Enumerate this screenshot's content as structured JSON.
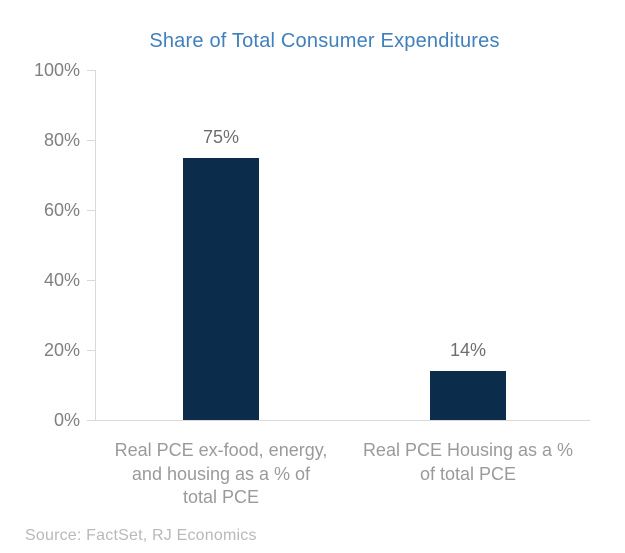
{
  "title": "Share of Total Consumer Expenditures",
  "source": {
    "text": "Source: FactSet, RJ Economics"
  },
  "colors": {
    "title": "#4080bd",
    "bar": "#0b2c4a",
    "axis_line": "#d9d9d9",
    "tick_label": "#808080",
    "value_label": "#6e6e6e",
    "category_label": "#9a9a9a",
    "source_text": "#b9b9b9",
    "background": "#ffffff"
  },
  "chart_data": {
    "type": "bar",
    "title": "Share of Total Consumer Expenditures",
    "categories": [
      "Real PCE ex-food, energy, and housing as a % of total PCE",
      "Real PCE Housing as a % of total PCE"
    ],
    "category_lines": [
      [
        "Real PCE ex-food, energy,",
        "and housing as a % of",
        "total PCE"
      ],
      [
        "Real PCE Housing as a %",
        "of total PCE"
      ]
    ],
    "values": [
      75,
      14
    ],
    "value_labels": [
      "75%",
      "14%"
    ],
    "xlabel": "",
    "ylabel": "",
    "ylim": [
      0,
      100
    ],
    "yticks": [
      100,
      80,
      60,
      40,
      20,
      0
    ],
    "ytick_labels": [
      "100%",
      "80%",
      "60%",
      "40%",
      "20%",
      "0%"
    ],
    "grid": false,
    "legend": "none",
    "source": "Source: FactSet, RJ Economics"
  }
}
